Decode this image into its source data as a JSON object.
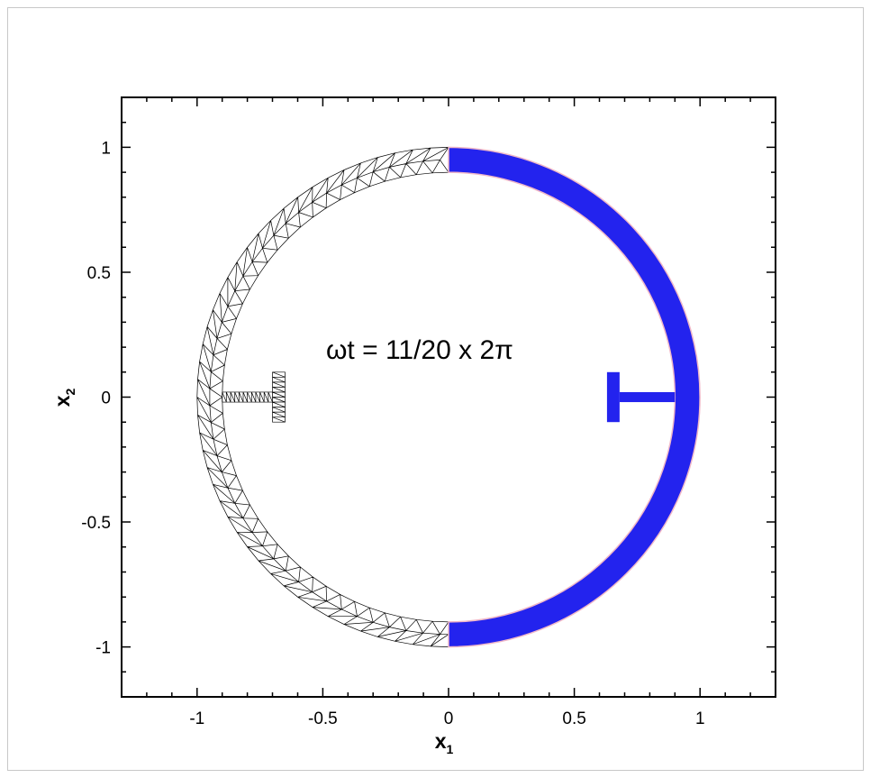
{
  "figure": {
    "annotation": "ωt = 11/20  x  2π",
    "colors": {
      "solid_fill": "#2323ee",
      "solid_edge": "#f0b8c8",
      "mesh_line": "#000000",
      "axis": "#000000",
      "background": "#ffffff"
    }
  },
  "axes": {
    "x": {
      "title_main": "x",
      "title_sub": "1",
      "range": [
        -1.3,
        1.3
      ],
      "major_ticks": [
        -1,
        -0.5,
        0,
        0.5,
        1
      ],
      "tick_labels": [
        "-1",
        "-0.5",
        "0",
        "0.5",
        "1"
      ],
      "minor_step": 0.1
    },
    "y": {
      "title_main": "x",
      "title_sub": "2",
      "range": [
        -1.2,
        1.2
      ],
      "major_ticks": [
        -1,
        -0.5,
        0,
        0.5,
        1
      ],
      "tick_labels": [
        "-1",
        "-0.5",
        "0",
        "0.5",
        "1"
      ],
      "minor_step": 0.1
    }
  },
  "geometry": {
    "ring_inner_radius": 0.9,
    "ring_outer_radius": 1.0,
    "mesh_half": "left",
    "solid_half": "right",
    "mesh_t_beam": {
      "web_y": 0.0,
      "web_half_height": 0.02,
      "web_x": [
        -0.9,
        -0.7
      ],
      "flange_x": [
        -0.7,
        -0.65
      ],
      "flange_half_height": 0.1
    },
    "solid_t_beam": {
      "web_y": 0.0,
      "web_half_height": 0.02,
      "web_x": [
        0.68,
        0.9
      ],
      "flange_x": [
        0.63,
        0.68
      ],
      "flange_half_height": 0.1
    }
  }
}
